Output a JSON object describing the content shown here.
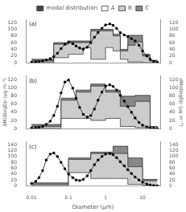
{
  "chart_data": [
    {
      "type": "bar",
      "annotations": [
        "(a)"
      ],
      "stacked": true,
      "log": "x",
      "grid": false,
      "legend": "top",
      "tick_labels": "y",
      "bins": [
        0.01,
        0.04,
        0.1,
        0.25,
        0.4,
        1.0,
        1.6,
        2.5,
        4.0,
        6.3,
        10.0,
        15.8,
        25.0
      ],
      "series": [
        {
          "name": "A",
          "color": "white",
          "values": [
            0,
            15,
            25,
            45,
            10,
            45,
            35,
            10,
            2,
            2,
            0,
            0
          ]
        },
        {
          "name": "B",
          "color": "#cccccc",
          "values": [
            5,
            40,
            35,
            15,
            85,
            50,
            45,
            25,
            50,
            60,
            20,
            5
          ]
        },
        {
          "name": "C",
          "color": "#888888",
          "values": [
            5,
            5,
            5,
            5,
            5,
            5,
            5,
            5,
            30,
            20,
            5,
            2
          ]
        },
        {
          "name": "modal distribution",
          "type": "line",
          "color": "#444444",
          "marker": "square",
          "x": [
            0.01,
            0.013,
            0.016,
            0.02,
            0.025,
            0.032,
            0.04,
            0.05,
            0.063,
            0.08,
            0.1,
            0.13,
            0.16,
            0.2,
            0.25,
            0.32,
            0.4,
            0.5,
            0.63,
            0.8,
            1.0,
            1.3,
            1.6,
            2.0,
            2.5,
            3.2,
            4.0,
            5.0,
            6.3,
            8.0,
            10.0,
            13.0,
            16.0,
            20.0,
            25.0
          ],
          "values": [
            1,
            2,
            3,
            5,
            8,
            12,
            18,
            28,
            42,
            55,
            62,
            57,
            50,
            44,
            40,
            46,
            60,
            76,
            90,
            103,
            113,
            116,
            112,
            102,
            90,
            83,
            78,
            72,
            65,
            52,
            35,
            20,
            10,
            4,
            1
          ]
        }
      ],
      "xlim": [
        0.007,
        30
      ],
      "xticks": [
        0.01,
        0.1,
        1,
        10
      ],
      "ylim": [
        0,
        130
      ],
      "yticks": [
        0,
        20,
        40,
        60,
        80,
        100,
        120
      ],
      "y2lim": [
        0,
        130
      ],
      "y2ticks": [
        0,
        20,
        40,
        60,
        80,
        100,
        120
      ]
    },
    {
      "type": "bar",
      "annotations": [
        "(b)"
      ],
      "stacked": true,
      "log": "x",
      "grid": false,
      "tick_labels": "y",
      "ylabel": "ΔM/ΔlogDp (μg m⁻³)",
      "y2label": "dM/dlogDp (μg m⁻³)",
      "bins": [
        0.01,
        0.063,
        0.16,
        0.4,
        1.0,
        2.5,
        6.3,
        16.0,
        25.0
      ],
      "series": [
        {
          "name": "A",
          "color": "white",
          "values": [
            0,
            25,
            25,
            20,
            25,
            5,
            2,
            0
          ]
        },
        {
          "name": "B",
          "color": "#cccccc",
          "values": [
            5,
            45,
            65,
            85,
            65,
            50,
            65,
            5
          ]
        },
        {
          "name": "C",
          "color": "#888888",
          "values": [
            5,
            5,
            5,
            5,
            5,
            25,
            15,
            0
          ]
        },
        {
          "name": "modal distribution",
          "type": "line",
          "color": "#444444",
          "marker": "square",
          "x": [
            0.01,
            0.013,
            0.016,
            0.02,
            0.025,
            0.032,
            0.04,
            0.05,
            0.063,
            0.08,
            0.1,
            0.13,
            0.16,
            0.2,
            0.25,
            0.32,
            0.4,
            0.5,
            0.63,
            0.8,
            1.0,
            1.3,
            1.6,
            2.0,
            2.5,
            3.2,
            4.0,
            5.0,
            6.3,
            8.0,
            10.0,
            13.0,
            16.0,
            20.0,
            25.0
          ],
          "values": [
            1,
            2,
            3,
            5,
            10,
            18,
            32,
            55,
            88,
            115,
            120,
            100,
            75,
            52,
            35,
            28,
            32,
            48,
            70,
            90,
            105,
            108,
            104,
            95,
            82,
            68,
            54,
            40,
            26,
            15,
            8,
            4,
            2,
            1,
            0
          ]
        }
      ],
      "xlim": [
        0.007,
        30
      ],
      "xticks": [
        0.01,
        0.1,
        1,
        10
      ],
      "ylim": [
        0,
        130
      ],
      "yticks": [
        0,
        20,
        40,
        60,
        80,
        100,
        120
      ],
      "y2lim": [
        0,
        130
      ],
      "y2ticks": [
        0,
        20,
        40,
        60,
        80,
        100,
        120
      ]
    },
    {
      "type": "bar",
      "annotations": [
        "(c)"
      ],
      "stacked": true,
      "log": "x",
      "grid": false,
      "xlabel": "Diameter (μm)",
      "bins": [
        0.01,
        0.1,
        0.4,
        1.6,
        4.0,
        10.0,
        25.0
      ],
      "series": [
        {
          "name": "A",
          "color": "white",
          "values": [
            0,
            45,
            25,
            25,
            5,
            2
          ]
        },
        {
          "name": "B",
          "color": "#cccccc",
          "values": [
            5,
            45,
            85,
            85,
            60,
            15
          ]
        },
        {
          "name": "C",
          "color": "#888888",
          "values": [
            5,
            5,
            5,
            25,
            30,
            5
          ]
        },
        {
          "name": "modal distribution",
          "type": "line",
          "color": "#444444",
          "marker": "square",
          "x": [
            0.01,
            0.013,
            0.016,
            0.02,
            0.025,
            0.032,
            0.04,
            0.05,
            0.063,
            0.08,
            0.1,
            0.13,
            0.16,
            0.2,
            0.25,
            0.32,
            0.4,
            0.5,
            0.63,
            0.8,
            1.0,
            1.3,
            1.6,
            2.0,
            2.5,
            3.2,
            4.0,
            5.0,
            6.3,
            8.0,
            10.0,
            13.0,
            16.0,
            20.0,
            25.0
          ],
          "values": [
            8,
            15,
            28,
            52,
            88,
            108,
            112,
            100,
            80,
            58,
            40,
            28,
            20,
            18,
            22,
            34,
            52,
            72,
            88,
            100,
            108,
            110,
            106,
            96,
            82,
            68,
            55,
            42,
            30,
            20,
            12,
            6,
            3,
            1,
            0
          ]
        }
      ],
      "xlim": [
        0.007,
        30
      ],
      "xticks": [
        0.01,
        0.1,
        1,
        10
      ],
      "ylim": [
        0,
        150
      ],
      "yticks": [
        0,
        20,
        40,
        60,
        80,
        100,
        120,
        140
      ],
      "y2lim": [
        0,
        150
      ],
      "y2ticks": [
        0,
        20,
        40,
        60,
        80,
        100,
        120,
        140
      ]
    }
  ]
}
